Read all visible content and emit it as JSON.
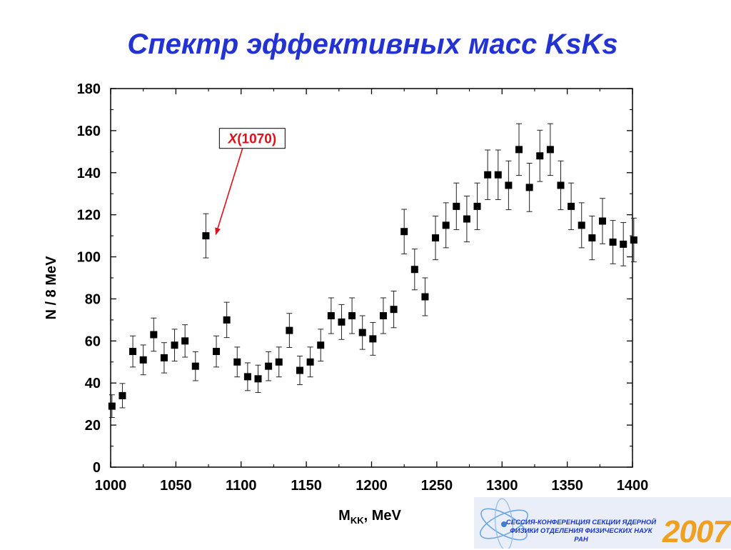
{
  "slide": {
    "title": "Спектр эффективных масс KsKs"
  },
  "chart_data": {
    "type": "scatter",
    "title": "",
    "xlabel_main": "M",
    "xlabel_sub": "KK",
    "xlabel_unit": ", MeV",
    "ylabel": "N / 8 MeV",
    "xlim": [
      1000,
      1400
    ],
    "ylim": [
      0,
      180
    ],
    "x_ticks": [
      "1000",
      "1050",
      "1100",
      "1150",
      "1200",
      "1250",
      "1300",
      "1350",
      "1400"
    ],
    "y_ticks": [
      "0",
      "20",
      "40",
      "60",
      "80",
      "100",
      "120",
      "140",
      "160",
      "180"
    ],
    "grid": false,
    "annotation": {
      "italic_part": "X",
      "text": "(1070)",
      "target": [
        1073,
        110
      ],
      "label_at": [
        1085,
        157
      ]
    },
    "series": [
      {
        "marker": "square",
        "color": "#000000",
        "x": [
          1001,
          1009,
          1017,
          1025,
          1033,
          1041,
          1049,
          1057,
          1065,
          1073,
          1081,
          1089,
          1097,
          1105,
          1113,
          1121,
          1129,
          1137,
          1145,
          1153,
          1161,
          1169,
          1177,
          1185,
          1193,
          1201,
          1209,
          1217,
          1225,
          1233,
          1241,
          1249,
          1257,
          1265,
          1273,
          1281,
          1289,
          1297,
          1305,
          1313,
          1321,
          1329,
          1337,
          1345,
          1353,
          1361,
          1369,
          1377,
          1385,
          1393,
          1401
        ],
        "y": [
          29,
          34,
          55,
          51,
          63,
          52,
          58,
          60,
          48,
          110,
          55,
          70,
          50,
          43,
          42,
          48,
          50,
          65,
          46,
          50,
          58,
          72,
          69,
          72,
          64,
          61,
          72,
          75,
          112,
          94,
          81,
          109,
          115,
          124,
          118,
          124,
          139,
          139,
          134,
          151,
          133,
          148,
          151,
          134,
          124,
          115,
          109,
          117,
          107,
          106,
          108
        ],
        "err": [
          5.4,
          5.8,
          7.4,
          7.1,
          7.9,
          7.2,
          7.6,
          7.7,
          6.9,
          10.5,
          7.4,
          8.4,
          7.1,
          6.6,
          6.5,
          6.9,
          7.1,
          8.1,
          6.8,
          7.1,
          7.6,
          8.5,
          8.3,
          8.5,
          8.0,
          7.8,
          8.5,
          8.7,
          10.6,
          9.7,
          9.0,
          10.4,
          10.7,
          11.1,
          10.9,
          11.1,
          11.8,
          11.8,
          11.6,
          12.3,
          11.5,
          12.2,
          12.3,
          11.6,
          11.1,
          10.7,
          10.4,
          10.8,
          10.3,
          10.3,
          10.4
        ]
      }
    ]
  },
  "logo": {
    "line1": "СЕССИЯ-КОНФЕРЕНЦИЯ СЕКЦИИ ЯДЕРНОЙ",
    "line2": "ФИЗИКИ ОТДЕЛЕНИЯ ФИЗИЧЕСКИХ НАУК",
    "line3": "РАН",
    "year": "2007"
  }
}
